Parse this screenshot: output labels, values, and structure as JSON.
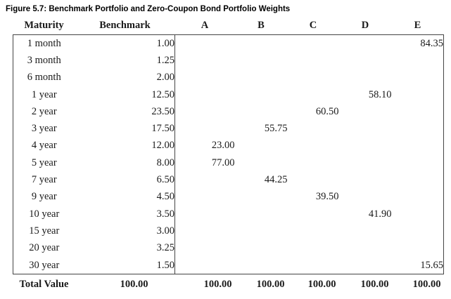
{
  "figure": {
    "title": "Figure 5.7: Benchmark Portfolio and Zero-Coupon Bond Portfolio Weights"
  },
  "colors": {
    "text": "#1a1a1a",
    "line": "#444444",
    "background": "#ffffff"
  },
  "table": {
    "columns": [
      "Maturity",
      "Benchmark",
      "A",
      "B",
      "C",
      "D",
      "E"
    ],
    "rows": [
      [
        "1 month",
        "1.00",
        "",
        "",
        "",
        "",
        "84.35"
      ],
      [
        "3 month",
        "1.25",
        "",
        "",
        "",
        "",
        ""
      ],
      [
        "6 month",
        "2.00",
        "",
        "",
        "",
        "",
        ""
      ],
      [
        "1 year",
        "12.50",
        "",
        "",
        "",
        "58.10",
        ""
      ],
      [
        "2 year",
        "23.50",
        "",
        "",
        "60.50",
        "",
        ""
      ],
      [
        "3 year",
        "17.50",
        "",
        "55.75",
        "",
        "",
        ""
      ],
      [
        "4 year",
        "12.00",
        "23.00",
        "",
        "",
        "",
        ""
      ],
      [
        "5 year",
        "8.00",
        "77.00",
        "",
        "",
        "",
        ""
      ],
      [
        "7 year",
        "6.50",
        "",
        "44.25",
        "",
        "",
        ""
      ],
      [
        "9 year",
        "4.50",
        "",
        "",
        "39.50",
        "",
        ""
      ],
      [
        "10 year",
        "3.50",
        "",
        "",
        "",
        "41.90",
        ""
      ],
      [
        "15 year",
        "3.00",
        "",
        "",
        "",
        "",
        ""
      ],
      [
        "20 year",
        "3.25",
        "",
        "",
        "",
        "",
        ""
      ],
      [
        "30 year",
        "1.50",
        "",
        "",
        "",
        "",
        "15.65"
      ]
    ],
    "total": [
      "Total Value",
      "100.00",
      "100.00",
      "100.00",
      "100.00",
      "100.00",
      "100.00"
    ]
  }
}
